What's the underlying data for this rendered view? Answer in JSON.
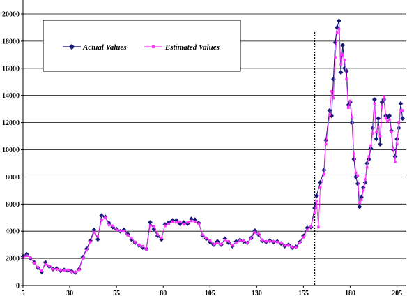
{
  "chart_data": {
    "type": "line",
    "title": "",
    "xlabel": "",
    "ylabel": "",
    "xlim": [
      5,
      210
    ],
    "ylim": [
      0,
      20000
    ],
    "x_ticks": [
      5,
      30,
      55,
      80,
      105,
      130,
      155,
      180,
      205
    ],
    "y_ticks": [
      0,
      2000,
      4000,
      6000,
      8000,
      10000,
      12000,
      14000,
      16000,
      18000,
      20000
    ],
    "grid": "horizontal",
    "legend_position": "top-left",
    "divider_x": 161,
    "series": [
      {
        "name": "Actual Values",
        "color": "#1a1a7a",
        "marker": "diamond",
        "points": [
          [
            5,
            2150
          ],
          [
            7,
            2300
          ],
          [
            9,
            2000
          ],
          [
            11,
            1700
          ],
          [
            13,
            1300
          ],
          [
            15,
            1000
          ],
          [
            17,
            1700
          ],
          [
            19,
            1400
          ],
          [
            21,
            1200
          ],
          [
            23,
            1250
          ],
          [
            25,
            1100
          ],
          [
            27,
            1150
          ],
          [
            29,
            1100
          ],
          [
            31,
            1050
          ],
          [
            33,
            950
          ],
          [
            35,
            1200
          ],
          [
            37,
            2100
          ],
          [
            39,
            2700
          ],
          [
            41,
            3300
          ],
          [
            43,
            4100
          ],
          [
            45,
            3400
          ],
          [
            47,
            5150
          ],
          [
            49,
            5050
          ],
          [
            51,
            4600
          ],
          [
            53,
            4300
          ],
          [
            55,
            4150
          ],
          [
            57,
            4000
          ],
          [
            59,
            4100
          ],
          [
            61,
            3800
          ],
          [
            63,
            3400
          ],
          [
            65,
            3150
          ],
          [
            67,
            2950
          ],
          [
            69,
            2800
          ],
          [
            71,
            2700
          ],
          [
            73,
            4650
          ],
          [
            75,
            4150
          ],
          [
            77,
            3650
          ],
          [
            79,
            3400
          ],
          [
            81,
            4500
          ],
          [
            83,
            4650
          ],
          [
            85,
            4800
          ],
          [
            87,
            4800
          ],
          [
            89,
            4550
          ],
          [
            91,
            4650
          ],
          [
            93,
            4550
          ],
          [
            95,
            4900
          ],
          [
            97,
            4850
          ],
          [
            99,
            4600
          ],
          [
            101,
            3700
          ],
          [
            103,
            3450
          ],
          [
            105,
            3200
          ],
          [
            107,
            3000
          ],
          [
            109,
            3250
          ],
          [
            111,
            3000
          ],
          [
            113,
            3450
          ],
          [
            115,
            3150
          ],
          [
            117,
            2900
          ],
          [
            119,
            3250
          ],
          [
            121,
            3350
          ],
          [
            123,
            3250
          ],
          [
            125,
            3150
          ],
          [
            127,
            3500
          ],
          [
            129,
            4050
          ],
          [
            131,
            3750
          ],
          [
            133,
            3300
          ],
          [
            135,
            3200
          ],
          [
            137,
            3300
          ],
          [
            139,
            3200
          ],
          [
            141,
            3250
          ],
          [
            143,
            3100
          ],
          [
            145,
            2900
          ],
          [
            147,
            3000
          ],
          [
            149,
            2800
          ],
          [
            151,
            2850
          ],
          [
            153,
            3200
          ],
          [
            155,
            3650
          ],
          [
            157,
            4250
          ],
          [
            159,
            4300
          ],
          [
            161,
            5700
          ],
          [
            162,
            6600
          ],
          [
            164,
            7600
          ],
          [
            166,
            8500
          ],
          [
            167,
            10700
          ],
          [
            169,
            12900
          ],
          [
            170,
            12500
          ],
          [
            171,
            15200
          ],
          [
            172,
            17900
          ],
          [
            173,
            19000
          ],
          [
            174,
            19500
          ],
          [
            175,
            15700
          ],
          [
            176,
            17700
          ],
          [
            177,
            16000
          ],
          [
            178,
            15800
          ],
          [
            179,
            13300
          ],
          [
            180,
            13500
          ],
          [
            181,
            12000
          ],
          [
            182,
            9300
          ],
          [
            183,
            8000
          ],
          [
            184,
            7500
          ],
          [
            185,
            5800
          ],
          [
            186,
            6500
          ],
          [
            187,
            7200
          ],
          [
            188,
            7600
          ],
          [
            189,
            9000
          ],
          [
            190,
            9300
          ],
          [
            191,
            10100
          ],
          [
            192,
            11600
          ],
          [
            193,
            13700
          ],
          [
            194,
            10800
          ],
          [
            195,
            12300
          ],
          [
            196,
            10400
          ],
          [
            197,
            13500
          ],
          [
            198,
            13700
          ],
          [
            199,
            12500
          ],
          [
            200,
            12400
          ],
          [
            201,
            12500
          ],
          [
            202,
            11400
          ],
          [
            203,
            10000
          ],
          [
            204,
            9500
          ],
          [
            205,
            10800
          ],
          [
            206,
            11600
          ],
          [
            207,
            13400
          ],
          [
            208,
            12300
          ]
        ]
      },
      {
        "name": "Estimated Values",
        "color": "#ff33ff",
        "marker": "square",
        "points": [
          [
            5,
            2050
          ],
          [
            7,
            2200
          ],
          [
            9,
            2050
          ],
          [
            11,
            1650
          ],
          [
            13,
            1350
          ],
          [
            15,
            1100
          ],
          [
            17,
            1550
          ],
          [
            19,
            1450
          ],
          [
            21,
            1200
          ],
          [
            23,
            1200
          ],
          [
            25,
            1150
          ],
          [
            27,
            1100
          ],
          [
            29,
            1150
          ],
          [
            31,
            1000
          ],
          [
            33,
            1000
          ],
          [
            35,
            1150
          ],
          [
            37,
            2000
          ],
          [
            39,
            2600
          ],
          [
            41,
            3200
          ],
          [
            43,
            3900
          ],
          [
            45,
            3600
          ],
          [
            47,
            4800
          ],
          [
            49,
            5000
          ],
          [
            51,
            4450
          ],
          [
            53,
            4400
          ],
          [
            55,
            4100
          ],
          [
            57,
            4050
          ],
          [
            59,
            4000
          ],
          [
            61,
            3700
          ],
          [
            63,
            3500
          ],
          [
            65,
            3200
          ],
          [
            67,
            3000
          ],
          [
            69,
            2900
          ],
          [
            71,
            2650
          ],
          [
            73,
            4400
          ],
          [
            75,
            4350
          ],
          [
            77,
            3750
          ],
          [
            79,
            3500
          ],
          [
            81,
            4400
          ],
          [
            83,
            4550
          ],
          [
            85,
            4700
          ],
          [
            87,
            4650
          ],
          [
            89,
            4700
          ],
          [
            91,
            4500
          ],
          [
            93,
            4650
          ],
          [
            95,
            4750
          ],
          [
            97,
            4700
          ],
          [
            99,
            4550
          ],
          [
            101,
            3750
          ],
          [
            103,
            3500
          ],
          [
            105,
            3300
          ],
          [
            107,
            3050
          ],
          [
            109,
            3150
          ],
          [
            111,
            3050
          ],
          [
            113,
            3350
          ],
          [
            115,
            3250
          ],
          [
            117,
            2950
          ],
          [
            119,
            3150
          ],
          [
            121,
            3300
          ],
          [
            123,
            3300
          ],
          [
            125,
            3150
          ],
          [
            127,
            3450
          ],
          [
            129,
            3900
          ],
          [
            131,
            3800
          ],
          [
            133,
            3350
          ],
          [
            135,
            3250
          ],
          [
            137,
            3250
          ],
          [
            139,
            3250
          ],
          [
            141,
            3200
          ],
          [
            143,
            3150
          ],
          [
            145,
            2950
          ],
          [
            147,
            2950
          ],
          [
            149,
            2850
          ],
          [
            151,
            2800
          ],
          [
            153,
            3150
          ],
          [
            155,
            3550
          ],
          [
            157,
            4100
          ],
          [
            159,
            4350
          ],
          [
            161,
            5400
          ],
          [
            162,
            6200
          ],
          [
            163,
            4300
          ],
          [
            164,
            7200
          ],
          [
            166,
            8200
          ],
          [
            167,
            10400
          ],
          [
            169,
            12600
          ],
          [
            170,
            14300
          ],
          [
            171,
            13800
          ],
          [
            172,
            16800
          ],
          [
            173,
            18600
          ],
          [
            174,
            18900
          ],
          [
            175,
            16300
          ],
          [
            176,
            17000
          ],
          [
            177,
            16600
          ],
          [
            178,
            15200
          ],
          [
            179,
            13100
          ],
          [
            180,
            13600
          ],
          [
            181,
            12400
          ],
          [
            182,
            9700
          ],
          [
            183,
            8300
          ],
          [
            184,
            8100
          ],
          [
            185,
            6100
          ],
          [
            186,
            6300
          ],
          [
            187,
            7000
          ],
          [
            188,
            7800
          ],
          [
            189,
            8700
          ],
          [
            190,
            9500
          ],
          [
            191,
            10300
          ],
          [
            192,
            11200
          ],
          [
            193,
            13400
          ],
          [
            194,
            11300
          ],
          [
            195,
            11700
          ],
          [
            196,
            11000
          ],
          [
            197,
            13100
          ],
          [
            198,
            13900
          ],
          [
            199,
            12300
          ],
          [
            200,
            12100
          ],
          [
            201,
            12200
          ],
          [
            202,
            11300
          ],
          [
            203,
            10100
          ],
          [
            204,
            9100
          ],
          [
            205,
            10400
          ],
          [
            206,
            12000
          ],
          [
            207,
            12900
          ],
          [
            208,
            12900
          ]
        ]
      }
    ]
  }
}
